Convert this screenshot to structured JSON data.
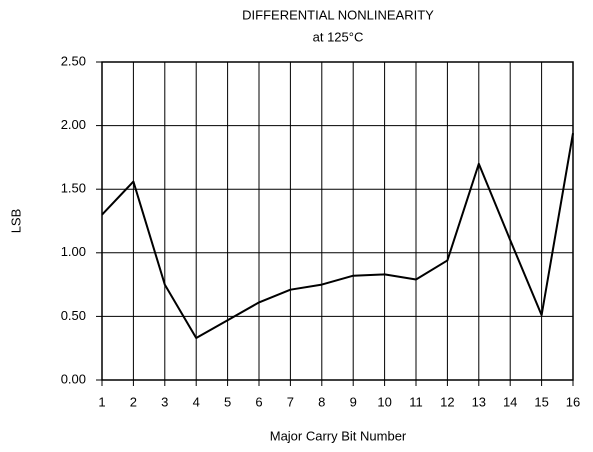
{
  "chart_data": {
    "type": "line",
    "title": "DIFFERENTIAL NONLINEARITY",
    "subtitle": "at 125°C",
    "x_label": "Major Carry Bit Number",
    "y_label": "LSB",
    "x": [
      1,
      2,
      3,
      4,
      5,
      6,
      7,
      8,
      9,
      10,
      11,
      12,
      13,
      14,
      15,
      16
    ],
    "series": [
      {
        "color": "#000000",
        "values": [
          1.3,
          1.56,
          0.75,
          0.33,
          0.47,
          0.61,
          0.71,
          0.75,
          0.82,
          0.83,
          0.79,
          0.94,
          1.7,
          1.1,
          0.51,
          1.94
        ]
      }
    ],
    "xlim": [
      1,
      16
    ],
    "xticks": [
      1,
      2,
      3,
      4,
      5,
      6,
      7,
      8,
      9,
      10,
      11,
      12,
      13,
      14,
      15,
      16
    ],
    "ylim": [
      0,
      2.5
    ],
    "yticks": [
      {
        "value": 0,
        "label": "0.00"
      },
      {
        "value": 0.5,
        "label": "0.50"
      },
      {
        "value": 1,
        "label": "1.00"
      },
      {
        "value": 1.5,
        "label": "1.50"
      },
      {
        "value": 2,
        "label": "2.00"
      },
      {
        "value": 2.5,
        "label": "2.50"
      }
    ],
    "grid": true
  }
}
